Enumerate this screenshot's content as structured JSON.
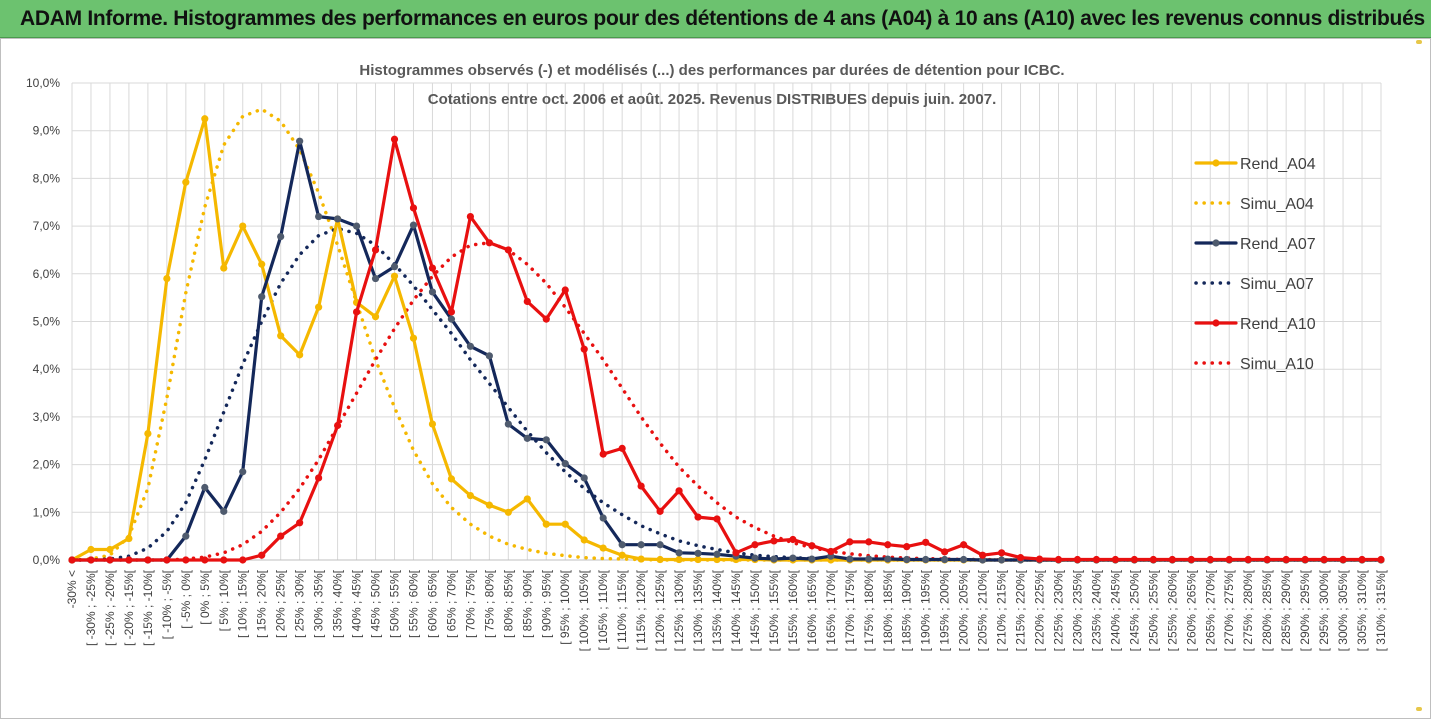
{
  "header": {
    "title": "ADAM Informe. Histogrammes des performances en euros pour des détentions de 4 ans (A04) à 10 ans (A10) avec les revenus connus distribués"
  },
  "chart_data": {
    "type": "line",
    "title_line1": "Histogrammes observés (-) et modélisés (...) des performances par durées de détention pour ICBC.",
    "title_line2": "Cotations entre oct. 2006 et août. 2025. Revenus DISTRIBUES depuis juin. 2007.",
    "yticks": [
      "0,0%",
      "1,0%",
      "2,0%",
      "3,0%",
      "4,0%",
      "5,0%",
      "6,0%",
      "7,0%",
      "8,0%",
      "9,0%",
      "10,0%"
    ],
    "ylim": [
      0,
      10
    ],
    "grid": true,
    "legend_position": "right",
    "categories": [
      "-30% <",
      "[ -30% ; -25%[",
      "[ -25% ; -20%[",
      "[ -20% ; -15%[",
      "[ -15% ; -10%[",
      "[ -10% ; -5%[",
      "[ -5% ; 0%[",
      "[ 0% ; 5%[",
      "[ 5% ; 10%[",
      "[ 10% ; 15%[",
      "[ 15% ; 20%[",
      "[ 20% ; 25%[",
      "[ 25% ; 30%[",
      "[ 30% ; 35%[",
      "[ 35% ; 40%[",
      "[ 40% ; 45%[",
      "[ 45% ; 50%[",
      "[ 50% ; 55%[",
      "[ 55% ; 60%[",
      "[ 60% ; 65%[",
      "[ 65% ; 70%[",
      "[ 70% ; 75%[",
      "[ 75% ; 80%[",
      "[ 80% ; 85%[",
      "[ 85% ; 90%[",
      "[ 90% ; 95%[",
      "[ 95% ; 100%[",
      "[ 100% ; 105%[",
      "[ 105% ; 110%[",
      "[ 110% ; 115%[",
      "[ 115% ; 120%[",
      "[ 120% ; 125%[",
      "[ 125% ; 130%[",
      "[ 130% ; 135%[",
      "[ 135% ; 140%[",
      "[ 140% ; 145%[",
      "[ 145% ; 150%[",
      "[ 150% ; 155%[",
      "[ 155% ; 160%[",
      "[ 160% ; 165%[",
      "[ 165% ; 170%[",
      "[ 170% ; 175%[",
      "[ 175% ; 180%[",
      "[ 180% ; 185%[",
      "[ 185% ; 190%[",
      "[ 190% ; 195%[",
      "[ 195% ; 200%[",
      "[ 200% ; 205%[",
      "[ 205% ; 210%[",
      "[ 210% ; 215%[",
      "[ 215% ; 220%[",
      "[ 220% ; 225%[",
      "[ 225% ; 230%[",
      "[ 230% ; 235%[",
      "[ 235% ; 240%[",
      "[ 240% ; 245%[",
      "[ 245% ; 250%[",
      "[ 250% ; 255%[",
      "[ 255% ; 260%[",
      "[ 260% ; 265%[",
      "[ 265% ; 270%[",
      "[ 270% ; 275%[",
      "[ 275% ; 280%[",
      "[ 280% ; 285%[",
      "[ 285% ; 290%[",
      "[ 290% ; 295%[",
      "[ 295% ; 300%[",
      "[ 300% ; 305%[",
      "[ 305% ; 310%[",
      "[ 310% ; 315%["
    ],
    "series": [
      {
        "name": "Rend_A04",
        "color": "#f5b800",
        "style": "solid",
        "markers": true,
        "values": [
          0.0,
          0.22,
          0.22,
          0.45,
          2.65,
          5.9,
          7.92,
          9.25,
          6.12,
          7.0,
          6.2,
          4.7,
          4.3,
          5.3,
          7.15,
          5.4,
          5.1,
          5.95,
          4.65,
          2.85,
          1.7,
          1.35,
          1.15,
          1.0,
          1.28,
          0.75,
          0.75,
          0.42,
          0.25,
          0.1,
          0.02,
          0.01,
          0.01,
          0.01,
          0.01,
          0.01,
          0.01,
          0.0,
          0.0,
          0.0,
          0.0,
          0.0,
          0.0,
          0.0,
          0.0,
          0.0,
          0.0,
          0.0,
          0.0,
          0.0,
          0.0,
          0.0,
          0.0,
          0.0,
          0.0,
          0.0,
          0.0,
          0.0,
          0.0,
          0.0,
          0.0,
          0.0,
          0.0,
          0.0,
          0.0,
          0.0,
          0.0,
          0.0,
          0.0,
          0.0
        ]
      },
      {
        "name": "Simu_A04",
        "color": "#f5b800",
        "style": "dotted",
        "markers": false,
        "values": [
          0.0,
          0.02,
          0.1,
          0.5,
          1.5,
          3.4,
          5.6,
          7.4,
          8.7,
          9.3,
          9.45,
          9.2,
          8.6,
          7.7,
          6.6,
          5.4,
          4.2,
          3.2,
          2.3,
          1.6,
          1.1,
          0.75,
          0.5,
          0.33,
          0.22,
          0.14,
          0.09,
          0.05,
          0.03,
          0.02,
          0.01,
          0.0,
          0.0,
          0.0,
          0.0,
          0.0,
          0.0,
          0.0,
          0.0,
          0.0,
          0.0,
          0.0,
          0.0,
          0.0,
          0.0,
          0.0,
          0.0,
          0.0,
          0.0,
          0.0,
          0.0,
          0.0,
          0.0,
          0.0,
          0.0,
          0.0,
          0.0,
          0.0,
          0.0,
          0.0,
          0.0,
          0.0,
          0.0,
          0.0,
          0.0,
          0.0,
          0.0,
          0.0,
          0.0,
          0.0
        ]
      },
      {
        "name": "Rend_A07",
        "color": "#14285a",
        "style": "solid",
        "markers": true,
        "values": [
          0.0,
          0.0,
          0.0,
          0.0,
          0.0,
          0.0,
          0.5,
          1.52,
          1.02,
          1.85,
          5.52,
          6.78,
          8.78,
          7.2,
          7.15,
          7.0,
          5.9,
          6.15,
          7.02,
          5.62,
          5.05,
          4.48,
          4.28,
          2.85,
          2.55,
          2.52,
          2.02,
          1.72,
          0.88,
          0.32,
          0.32,
          0.32,
          0.15,
          0.14,
          0.12,
          0.08,
          0.04,
          0.02,
          0.04,
          0.02,
          0.08,
          0.02,
          0.02,
          0.02,
          0.01,
          0.01,
          0.01,
          0.01,
          0.0,
          0.0,
          0.0,
          0.0,
          0.0,
          0.0,
          0.0,
          0.0,
          0.0,
          0.0,
          0.0,
          0.0,
          0.0,
          0.0,
          0.0,
          0.0,
          0.0,
          0.0,
          0.0,
          0.0,
          0.0,
          0.0
        ]
      },
      {
        "name": "Simu_A07",
        "color": "#14285a",
        "style": "dotted",
        "markers": false,
        "values": [
          0.0,
          0.0,
          0.02,
          0.08,
          0.25,
          0.6,
          1.2,
          2.1,
          3.1,
          4.1,
          5.0,
          5.8,
          6.4,
          6.8,
          6.95,
          6.85,
          6.6,
          6.2,
          5.75,
          5.25,
          4.75,
          4.2,
          3.7,
          3.2,
          2.7,
          2.25,
          1.85,
          1.5,
          1.2,
          0.95,
          0.72,
          0.55,
          0.4,
          0.3,
          0.22,
          0.15,
          0.1,
          0.07,
          0.05,
          0.03,
          0.02,
          0.01,
          0.01,
          0.0,
          0.0,
          0.0,
          0.0,
          0.0,
          0.0,
          0.0,
          0.0,
          0.0,
          0.0,
          0.0,
          0.0,
          0.0,
          0.0,
          0.0,
          0.0,
          0.0,
          0.0,
          0.0,
          0.0,
          0.0,
          0.0,
          0.0,
          0.0,
          0.0,
          0.0,
          0.0
        ]
      },
      {
        "name": "Rend_A10",
        "color": "#e81010",
        "style": "solid",
        "markers": true,
        "values": [
          0.0,
          0.0,
          0.0,
          0.0,
          0.0,
          0.0,
          0.0,
          0.0,
          0.0,
          0.0,
          0.1,
          0.5,
          0.78,
          1.72,
          2.82,
          5.2,
          6.5,
          8.82,
          7.38,
          6.12,
          5.2,
          7.2,
          6.65,
          6.5,
          5.42,
          5.05,
          5.66,
          4.42,
          2.22,
          2.34,
          1.55,
          1.02,
          1.45,
          0.9,
          0.86,
          0.15,
          0.32,
          0.4,
          0.43,
          0.3,
          0.18,
          0.38,
          0.38,
          0.32,
          0.28,
          0.37,
          0.17,
          0.32,
          0.1,
          0.15,
          0.05,
          0.02,
          0.01,
          0.01,
          0.01,
          0.01,
          0.01,
          0.01,
          0.01,
          0.01,
          0.01,
          0.01,
          0.01,
          0.01,
          0.01,
          0.01,
          0.01,
          0.01,
          0.01,
          0.01
        ]
      },
      {
        "name": "Simu_A10",
        "color": "#e81010",
        "style": "dotted",
        "markers": false,
        "values": [
          0.0,
          0.0,
          0.0,
          0.0,
          0.0,
          0.0,
          0.02,
          0.06,
          0.15,
          0.32,
          0.6,
          1.0,
          1.5,
          2.1,
          2.8,
          3.5,
          4.2,
          4.85,
          5.45,
          5.95,
          6.35,
          6.6,
          6.65,
          6.5,
          6.2,
          5.8,
          5.3,
          4.75,
          4.2,
          3.6,
          3.0,
          2.45,
          1.95,
          1.55,
          1.2,
          0.9,
          0.68,
          0.5,
          0.36,
          0.26,
          0.18,
          0.13,
          0.09,
          0.06,
          0.04,
          0.03,
          0.02,
          0.01,
          0.01,
          0.0,
          0.0,
          0.0,
          0.0,
          0.0,
          0.0,
          0.0,
          0.0,
          0.0,
          0.0,
          0.0,
          0.0,
          0.0,
          0.0,
          0.0,
          0.0,
          0.0,
          0.0,
          0.0,
          0.0,
          0.0
        ]
      }
    ]
  }
}
